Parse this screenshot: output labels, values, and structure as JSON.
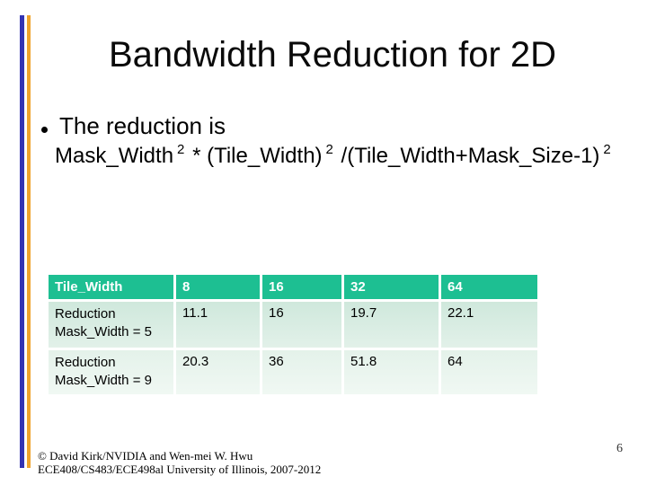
{
  "slide": {
    "title": "Bandwidth Reduction for 2D",
    "bullet": "The reduction is",
    "formula": {
      "seg1": "Mask_Width",
      "sup1": "2",
      "seg2": "* (Tile_Width)",
      "sup2": "2",
      "seg3": "/(Tile_Width+Mask_Size-1)",
      "sup3": "2"
    },
    "table": {
      "header": [
        "Tile_Width",
        "8",
        "16",
        "32",
        "64"
      ],
      "rows": [
        {
          "label": "Reduction Mask_Width = 5",
          "values": [
            "11.1",
            "16",
            "19.7",
            "22.1"
          ]
        },
        {
          "label": "Reduction Mask_Width = 9",
          "values": [
            "20.3",
            "36",
            "51.8",
            "64"
          ]
        }
      ]
    },
    "footer": {
      "line1": "© David Kirk/NVIDIA and Wen-mei W. Hwu",
      "line2": "ECE408/CS483/ECE498al University of Illinois, 2007-2012"
    },
    "page_number": "6",
    "colors": {
      "accent_bar_blue": "#3333b2",
      "accent_bar_orange": "#efa32b",
      "table_header_bg": "#1dbf92",
      "table_row1_bg": "#d6ebe0",
      "table_row2_bg": "#e8f4ee"
    }
  }
}
